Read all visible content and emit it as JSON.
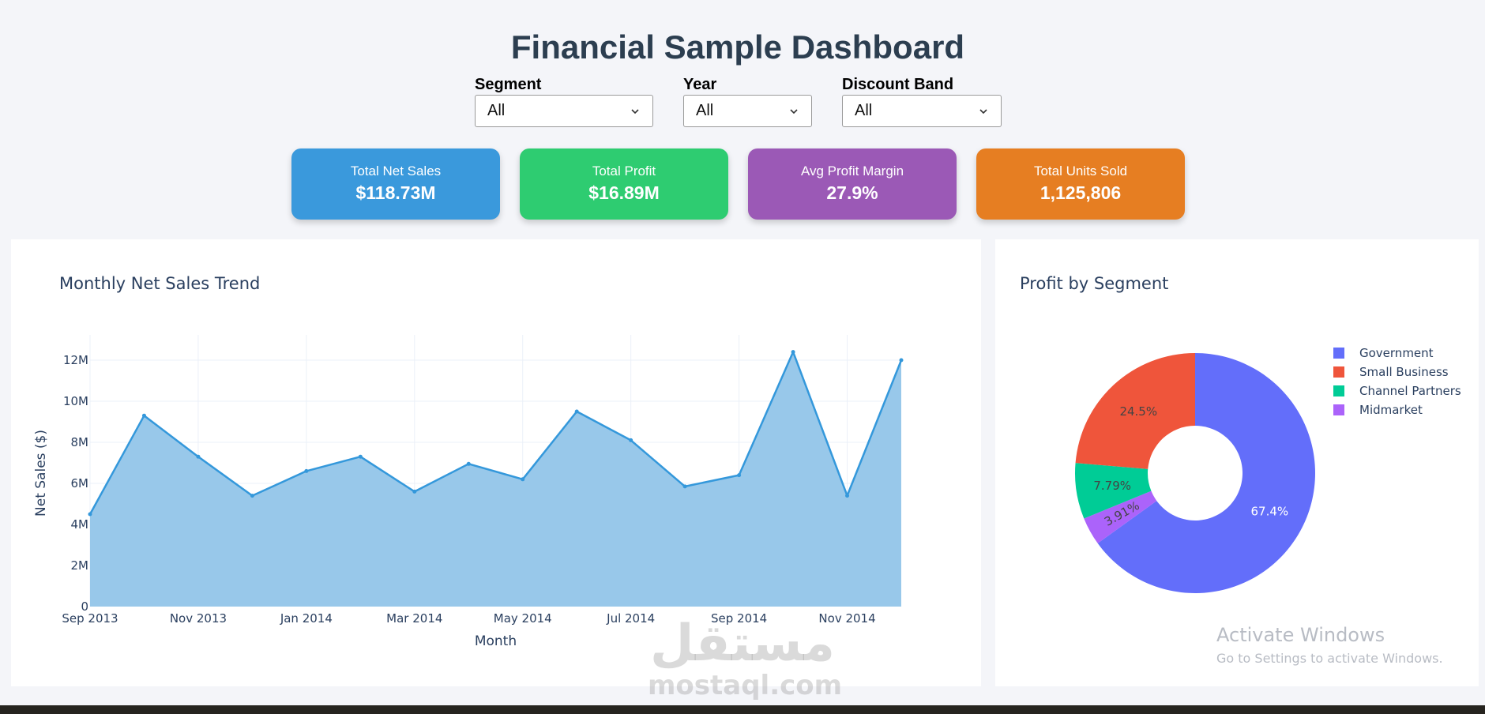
{
  "page": {
    "title": "Financial Sample Dashboard"
  },
  "filters": [
    {
      "label": "Segment",
      "value": "All"
    },
    {
      "label": "Year",
      "value": "All"
    },
    {
      "label": "Discount Band",
      "value": "All"
    }
  ],
  "kpis": [
    {
      "label": "Total Net Sales",
      "value": "$118.73M",
      "color": "#3a99dc"
    },
    {
      "label": "Total Profit",
      "value": "$16.89M",
      "color": "#2ecc71"
    },
    {
      "label": "Avg Profit Margin",
      "value": "27.9%",
      "color": "#9b59b6"
    },
    {
      "label": "Total Units Sold",
      "value": "1,125,806",
      "color": "#e67e22"
    }
  ],
  "chart_data": [
    {
      "type": "area",
      "title": "Monthly Net Sales Trend",
      "xlabel": "Month",
      "ylabel": "Net Sales ($)",
      "x": [
        "Sep 2013",
        "Oct 2013",
        "Nov 2013",
        "Dec 2013",
        "Jan 2014",
        "Feb 2014",
        "Mar 2014",
        "Apr 2014",
        "May 2014",
        "Jun 2014",
        "Jul 2014",
        "Aug 2014",
        "Sep 2014",
        "Oct 2014",
        "Nov 2014",
        "Dec 2014"
      ],
      "values": [
        4.5,
        9.3,
        7.3,
        5.4,
        6.6,
        7.3,
        5.6,
        6.95,
        6.2,
        9.5,
        8.1,
        5.85,
        6.4,
        12.4,
        5.4,
        12.0
      ],
      "value_unit": "M",
      "xticks": [
        "Sep 2013",
        "Nov 2013",
        "Jan 2014",
        "Mar 2014",
        "May 2014",
        "Jul 2014",
        "Sep 2014",
        "Nov 2014"
      ],
      "yticks": [
        "0",
        "2M",
        "4M",
        "6M",
        "8M",
        "10M",
        "12M"
      ],
      "ylim": [
        0,
        13
      ],
      "color": "#3498db",
      "fill_color": "#98c8ea"
    },
    {
      "type": "pie",
      "title": "Profit by Segment",
      "hole": true,
      "legend_position": "top-right",
      "slices": [
        {
          "label": "Government",
          "value": 67.4,
          "text": "67.4%",
          "color": "#636efa"
        },
        {
          "label": "Midmarket",
          "value": 3.91,
          "text": "3.91%",
          "color": "#ab63fa"
        },
        {
          "label": "Channel Partners",
          "value": 7.79,
          "text": "7.79%",
          "color": "#00cc96"
        },
        {
          "label": "Small Business",
          "value": 24.5,
          "text": "24.5%",
          "color": "#ef553b"
        }
      ],
      "legend": [
        {
          "label": "Government",
          "color": "#636efa"
        },
        {
          "label": "Small Business",
          "color": "#ef553b"
        },
        {
          "label": "Channel Partners",
          "color": "#00cc96"
        },
        {
          "label": "Midmarket",
          "color": "#ab63fa"
        }
      ]
    }
  ],
  "watermark": {
    "title": "Activate Windows",
    "subtitle": "Go to Settings to activate Windows."
  },
  "logo_watermark": {
    "arabic": "مستقل",
    "latin": "mostaql.com"
  }
}
